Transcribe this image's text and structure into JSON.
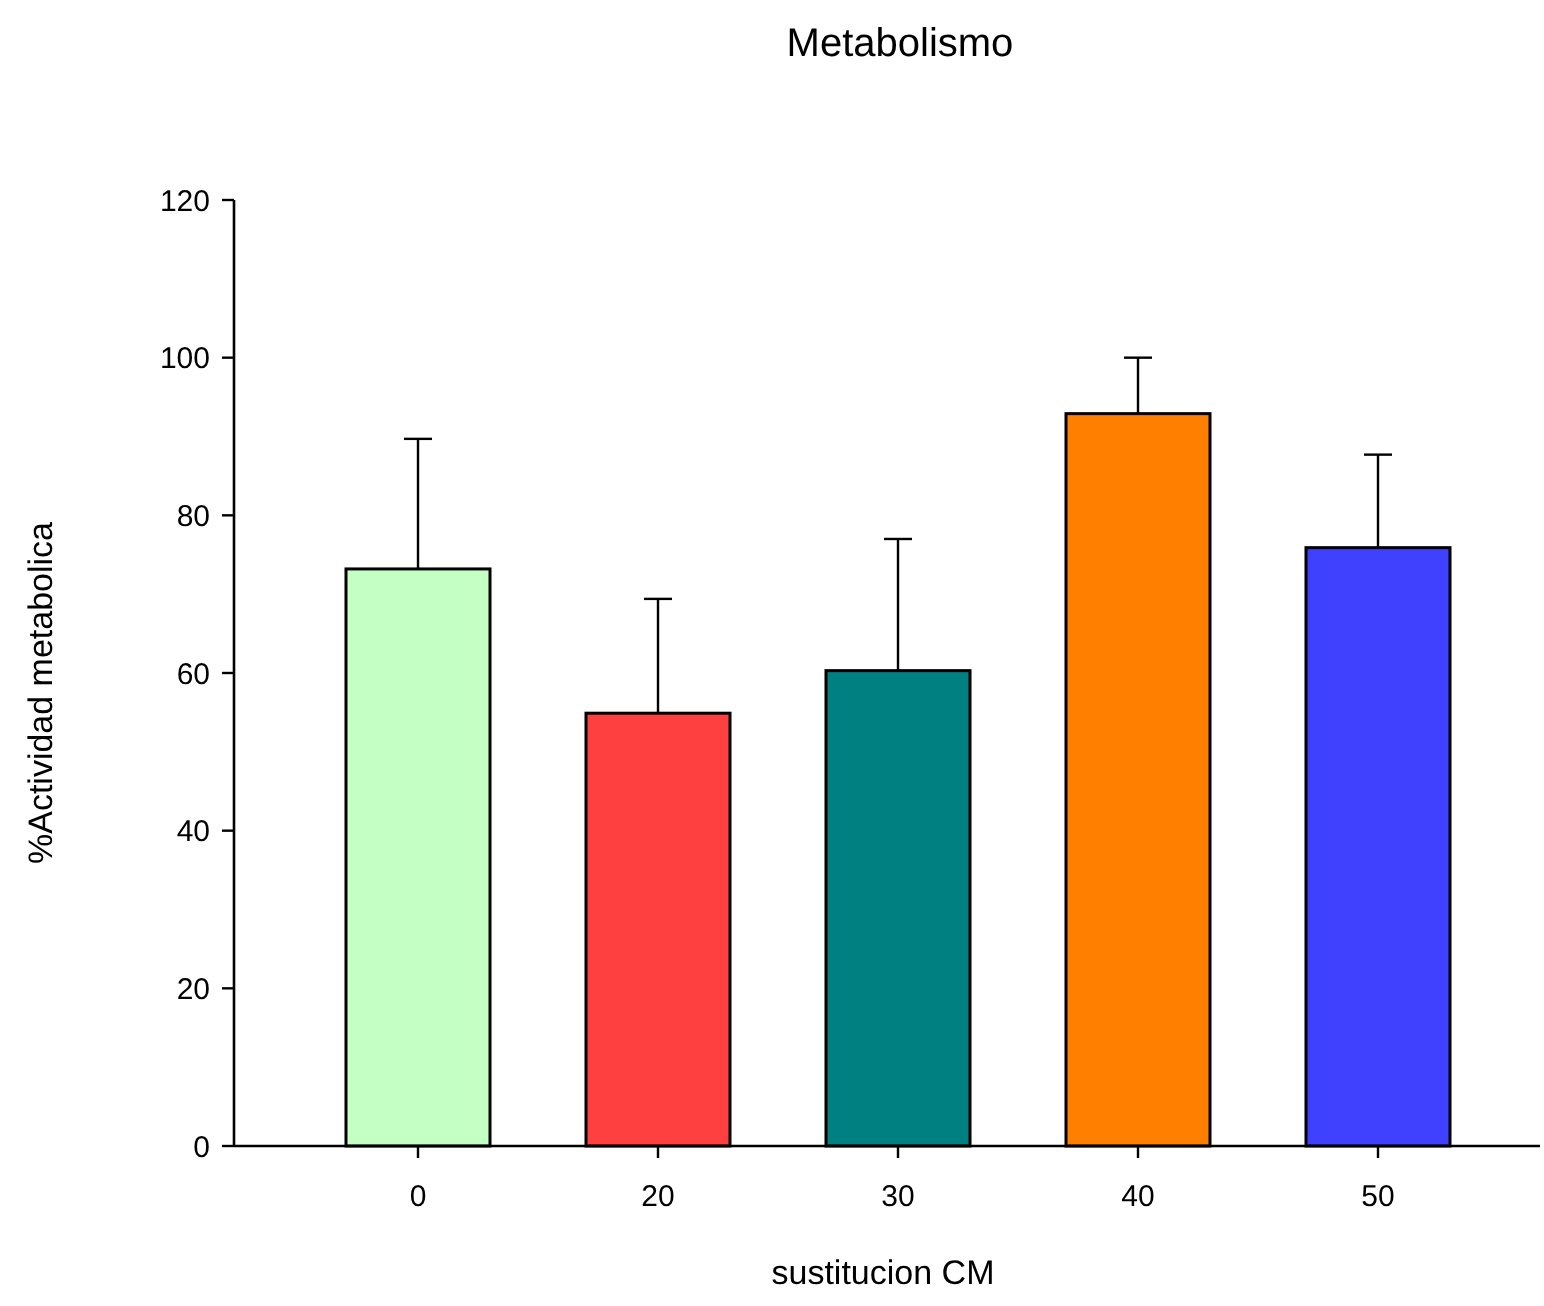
{
  "chart_data": {
    "type": "bar",
    "title": "Metabolismo",
    "xlabel": "sustitucion CM",
    "ylabel": "%Actividad metabolica",
    "categories": [
      "0",
      "20",
      "30",
      "40",
      "50"
    ],
    "values": [
      73.2,
      54.9,
      60.3,
      92.9,
      75.9
    ],
    "colors": [
      "#c4ffc4",
      "#ff4040",
      "#008080",
      "#ff8000",
      "#4040ff"
    ],
    "errors": [
      [
        73.2,
        89.7
      ],
      [
        54.9,
        69.4
      ],
      [
        60.3,
        77.0
      ],
      [
        92.9,
        100
      ],
      [
        75.9,
        87.7
      ]
    ],
    "ylim": [
      0,
      120
    ],
    "yticks": [
      0,
      20,
      40,
      60,
      80,
      100,
      120
    ],
    "grid": false
  }
}
